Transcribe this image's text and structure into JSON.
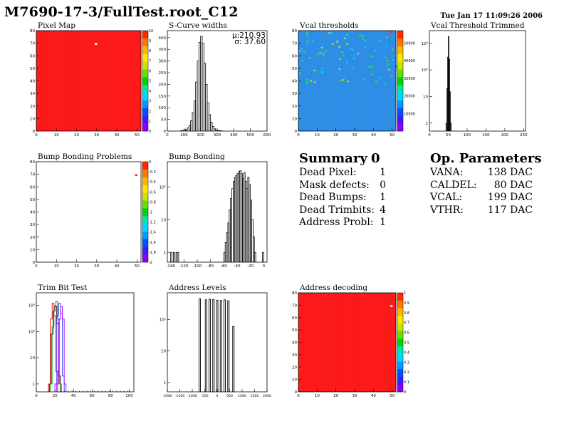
{
  "header": {
    "title": "M7690-17-3/FullTest.root_C12",
    "date": "Tue Jan 17 11:09:26 2006"
  },
  "colors": {
    "red_fill": "#ff1a1a",
    "blue_fill": "#2f8fe8",
    "palette": [
      "#8c00ff",
      "#3c1cff",
      "#0050ff",
      "#0099ff",
      "#00d7ff",
      "#00e6a8",
      "#00d400",
      "#66e000",
      "#c8e600",
      "#ffe600",
      "#ffb400",
      "#ff7800",
      "#ff2a00"
    ]
  },
  "chart_data": [
    {
      "id": "pixel-map",
      "type": "heatmap",
      "title": "Pixel Map",
      "xticks": [
        "0",
        "10",
        "20",
        "30",
        "40",
        "50"
      ],
      "yticks": [
        "0",
        "10",
        "20",
        "30",
        "40",
        "50",
        "60",
        "70",
        "80"
      ],
      "zticks": [
        "0",
        "1",
        "2",
        "3",
        "4",
        "5",
        "6",
        "7",
        "8",
        "9",
        "10"
      ],
      "xlim": [
        0,
        52
      ],
      "ylim": [
        0,
        80
      ],
      "zlim": [
        0,
        10
      ],
      "fill_value": 10,
      "outliers": [
        {
          "x": 29,
          "y": 70,
          "z": 0
        }
      ]
    },
    {
      "id": "s-curve-widths",
      "type": "bar",
      "title": "S-Curve widths",
      "stats": {
        "mu": "μ:210.93",
        "sigma": "σ: 37.60"
      },
      "xticks": [
        "0",
        "100",
        "200",
        "300",
        "400",
        "500",
        "600"
      ],
      "yticks": [
        "0",
        "50",
        "100",
        "150",
        "200",
        "250",
        "300",
        "350",
        "400"
      ],
      "xlim": [
        0,
        600
      ],
      "ylim": [
        0,
        430
      ],
      "bin_width": 10,
      "bins_x": [
        80,
        90,
        100,
        110,
        120,
        130,
        140,
        150,
        160,
        170,
        180,
        190,
        200,
        210,
        220,
        230,
        240,
        250,
        260,
        270,
        280,
        290,
        300,
        310,
        320,
        330
      ],
      "bins_y": [
        2,
        3,
        5,
        8,
        14,
        24,
        44,
        78,
        130,
        210,
        300,
        380,
        405,
        375,
        290,
        200,
        120,
        70,
        38,
        20,
        10,
        5,
        3,
        2,
        1,
        0
      ]
    },
    {
      "id": "vcal-thresholds",
      "type": "heatmap",
      "title": "Vcal thresholds",
      "xticks": [
        "0",
        "10",
        "20",
        "30",
        "40",
        "50"
      ],
      "yticks": [
        "0",
        "10",
        "20",
        "30",
        "40",
        "50",
        "60",
        "70",
        "80"
      ],
      "zticks": [
        "10000",
        "20000",
        "30000",
        "40000",
        "50000"
      ],
      "xlim": [
        0,
        52
      ],
      "ylim": [
        0,
        80
      ],
      "zlim": [
        0,
        57000
      ]
    },
    {
      "id": "vcal-threshold-trimmed",
      "type": "bar",
      "title": "Vcal Threshold Trimmed",
      "log_y": true,
      "xticks": [
        "0",
        "50",
        "100",
        "150",
        "200",
        "250"
      ],
      "yticks": [
        "1",
        "10",
        "10²",
        "10³"
      ],
      "xlim": [
        0,
        255
      ],
      "ylim_log": [
        0.5,
        3000
      ],
      "bins_x": [
        44,
        46,
        48,
        50,
        52,
        54,
        56
      ],
      "bins_y": [
        1,
        20,
        300,
        1800,
        250,
        15,
        1
      ]
    },
    {
      "id": "bump-bonding-problems",
      "type": "heatmap",
      "title": "Bump Bonding Problems",
      "xticks": [
        "0",
        "10",
        "20",
        "30",
        "40",
        "50"
      ],
      "yticks": [
        "0",
        "10",
        "20",
        "30",
        "40",
        "50",
        "60",
        "70",
        "80"
      ],
      "zticks": [
        "0",
        "-0.2",
        "-0.4",
        "-0.6",
        "-0.8",
        "-1",
        "-1.2",
        "-1.4",
        "-1.6",
        "-1.8",
        "-2"
      ],
      "xlim": [
        0,
        52
      ],
      "ylim": [
        0,
        80
      ],
      "zlim": [
        -2,
        0
      ],
      "outliers": [
        {
          "x": 49,
          "y": 70,
          "z": -0.1
        }
      ]
    },
    {
      "id": "bump-bonding",
      "type": "bar",
      "title": "Bump Bonding",
      "log_y": true,
      "xticks": [
        "-140",
        "-120",
        "-100",
        "-80",
        "-60",
        "-40",
        "-20",
        "0"
      ],
      "yticks": [
        "1",
        "10",
        "10²"
      ],
      "xlim": [
        -145,
        5
      ],
      "ylim_log": [
        0.5,
        600
      ],
      "bins_x": [
        -140,
        -138,
        -136,
        -134,
        -132,
        -130,
        -60,
        -58,
        -56,
        -54,
        -52,
        -50,
        -48,
        -46,
        -44,
        -42,
        -40,
        -38,
        -36,
        -34,
        -32,
        -30,
        -28,
        -26,
        -24,
        -22,
        -20,
        -18,
        -16,
        -14,
        -2
      ],
      "bins_y": [
        1,
        0,
        1,
        0,
        1,
        1,
        1,
        2,
        4,
        8,
        20,
        45,
        90,
        150,
        200,
        230,
        260,
        300,
        320,
        260,
        180,
        280,
        150,
        90,
        200,
        120,
        40,
        10,
        3,
        1,
        1
      ]
    },
    {
      "id": "trim-bit-test",
      "type": "line",
      "title": "Trim Bit Test",
      "log_y": true,
      "xticks": [
        "0",
        "20",
        "40",
        "60",
        "80",
        "100"
      ],
      "yticks": [
        "1",
        "10",
        "10²",
        "10³"
      ],
      "xlim": [
        0,
        105
      ],
      "ylim_log": [
        0.5,
        3000
      ],
      "series": [
        {
          "color": "#000000",
          "x": [
            14,
            16,
            18,
            20,
            22,
            24
          ],
          "y": [
            1,
            80,
            600,
            900,
            200,
            2
          ]
        },
        {
          "color": "#ff0000",
          "x": [
            13,
            15,
            17,
            19,
            21
          ],
          "y": [
            1,
            300,
            1200,
            400,
            3
          ]
        },
        {
          "color": "#00a000",
          "x": [
            15,
            17,
            19,
            21,
            23,
            25
          ],
          "y": [
            1,
            150,
            1000,
            1400,
            300,
            1
          ]
        },
        {
          "color": "#3030ff",
          "x": [
            20,
            22,
            24,
            26,
            28
          ],
          "y": [
            1,
            400,
            1200,
            500,
            2
          ]
        },
        {
          "color": "#a000ff",
          "x": [
            22,
            24,
            26,
            28,
            30
          ],
          "y": [
            1,
            300,
            900,
            300,
            1
          ]
        }
      ]
    },
    {
      "id": "address-levels",
      "type": "bar",
      "title": "Address Levels",
      "log_y": true,
      "xticks": [
        "-2000",
        "-1500",
        "-1000",
        "-500",
        "0",
        "500",
        "1000",
        "1500",
        "2000"
      ],
      "yticks": [
        "1",
        "10",
        "10²"
      ],
      "xlim": [
        -2000,
        2000
      ],
      "ylim_log": [
        0.5,
        700
      ],
      "bins_x": [
        -700,
        -450,
        -300,
        -150,
        0,
        150,
        300,
        450,
        650
      ],
      "bins_y": [
        450,
        420,
        440,
        430,
        410,
        400,
        420,
        390,
        60
      ]
    },
    {
      "id": "address-decoding",
      "type": "heatmap",
      "title": "Address decoding",
      "xticks": [
        "0",
        "10",
        "20",
        "30",
        "40",
        "50"
      ],
      "yticks": [
        "0",
        "10",
        "20",
        "30",
        "40",
        "50",
        "60",
        "70",
        "80"
      ],
      "zticks": [
        "0",
        "0.1",
        "0.2",
        "0.3",
        "0.4",
        "0.5",
        "0.6",
        "0.7",
        "0.8",
        "0.9",
        "1"
      ],
      "xlim": [
        0,
        52
      ],
      "ylim": [
        0,
        80
      ],
      "zlim": [
        0,
        1
      ],
      "fill_value": 1,
      "outliers": [
        {
          "x": 49,
          "y": 70,
          "z": 0
        }
      ]
    }
  ],
  "summary": {
    "heading": "Summary",
    "total": "0",
    "rows": [
      {
        "label": "Dead Pixel:",
        "value": "1"
      },
      {
        "label": "Mask defects:",
        "value": "0"
      },
      {
        "label": "Dead Bumps:",
        "value": "1"
      },
      {
        "label": "Dead Trimbits:",
        "value": "4"
      },
      {
        "label": "Address Probl:",
        "value": "1"
      }
    ]
  },
  "op_params": {
    "heading": "Op. Parameters",
    "rows": [
      {
        "label": "VANA:",
        "value": "138 DAC"
      },
      {
        "label": "CALDEL:",
        "value": "80 DAC"
      },
      {
        "label": "VCAL:",
        "value": "199 DAC"
      },
      {
        "label": "VTHR:",
        "value": "117 DAC"
      }
    ]
  }
}
